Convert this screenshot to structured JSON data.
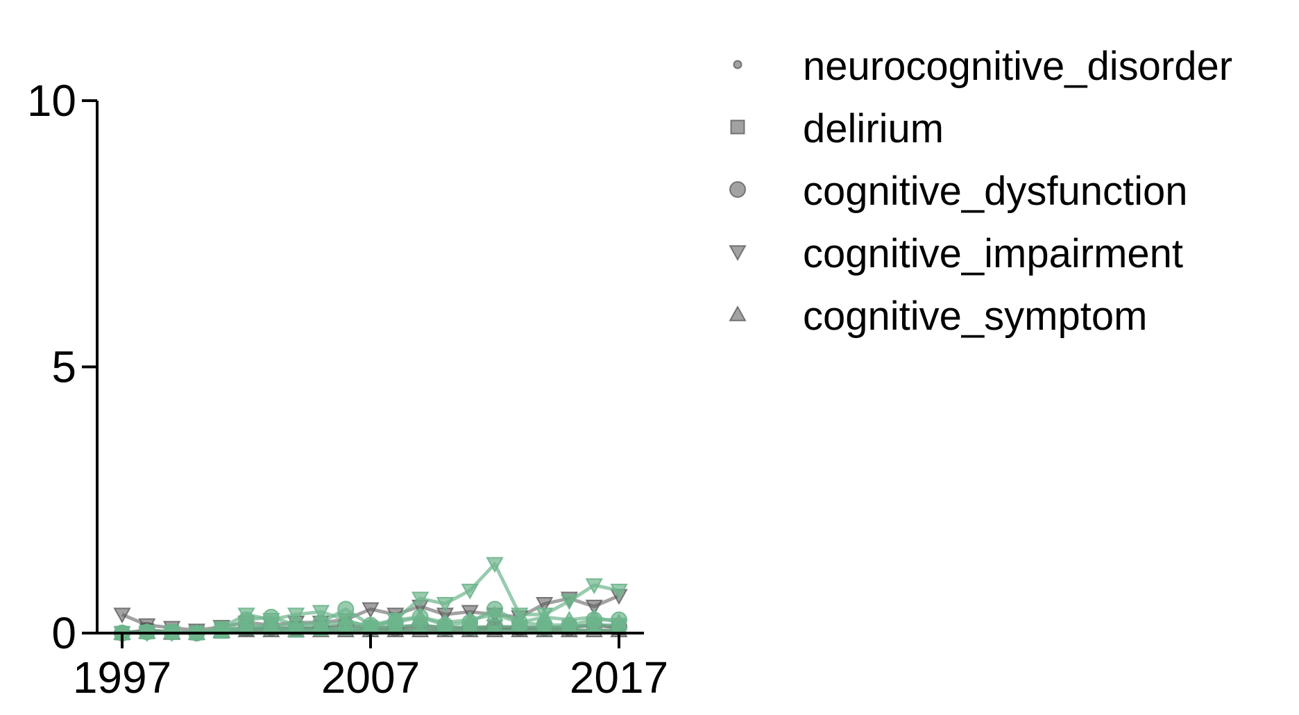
{
  "chart_data": {
    "type": "line",
    "title": "",
    "xlabel": "",
    "ylabel": "",
    "xlim": [
      1996,
      2018
    ],
    "ylim": [
      0,
      10
    ],
    "xticks": [
      1997,
      2007,
      2017
    ],
    "xtick_labels": [
      "1997",
      "2007",
      "2017"
    ],
    "yticks": [
      0,
      5,
      10
    ],
    "ytick_labels": [
      "0",
      "5",
      "10"
    ],
    "grid": false,
    "legend_position": "outside-right-top",
    "colors": {
      "gray": "#555555",
      "green": "#6db58c",
      "axis": "#000000"
    },
    "legend": [
      {
        "label": "neurocognitive_disorder",
        "marker": "point"
      },
      {
        "label": "delirium",
        "marker": "square"
      },
      {
        "label": "cognitive_dysfunction",
        "marker": "circle"
      },
      {
        "label": "cognitive_impairment",
        "marker": "triangle-down"
      },
      {
        "label": "cognitive_symptom",
        "marker": "triangle-up"
      }
    ],
    "x": [
      1997,
      1998,
      1999,
      2000,
      2001,
      2002,
      2003,
      2004,
      2005,
      2006,
      2007,
      2008,
      2009,
      2010,
      2011,
      2012,
      2013,
      2014,
      2015,
      2016,
      2017
    ],
    "series": [
      {
        "group": "gray",
        "legend_index": 0,
        "marker": "point",
        "values": [
          0,
          0.03,
          0.02,
          0,
          0.02,
          0.05,
          0.05,
          0.05,
          0.05,
          0.05,
          0.05,
          0.05,
          0.05,
          0.05,
          0.05,
          0.08,
          0.08,
          0.05,
          0.05,
          0.05,
          0.05
        ]
      },
      {
        "group": "gray",
        "legend_index": 1,
        "marker": "square",
        "values": [
          0,
          0.05,
          0.02,
          0,
          0.05,
          0.08,
          0.1,
          0.08,
          0.1,
          0.1,
          0.1,
          0.1,
          0.12,
          0.1,
          0.1,
          0.1,
          0.1,
          0.1,
          0.12,
          0.15,
          0.1
        ]
      },
      {
        "group": "gray",
        "legend_index": 2,
        "marker": "circle",
        "values": [
          0,
          0.05,
          0.02,
          0,
          0.05,
          0.1,
          0.1,
          0.08,
          0.1,
          0.15,
          0.1,
          0.1,
          0.15,
          0.1,
          0.1,
          0.12,
          0.1,
          0.1,
          0.1,
          0.15,
          0.12
        ]
      },
      {
        "group": "gray",
        "legend_index": 3,
        "marker": "triangle-down",
        "values": [
          0.35,
          0.15,
          0.1,
          0.05,
          0.12,
          0.2,
          0.15,
          0.2,
          0.2,
          0.25,
          0.45,
          0.35,
          0.5,
          0.35,
          0.4,
          0.35,
          0.3,
          0.55,
          0.65,
          0.5,
          0.7
        ]
      },
      {
        "group": "gray",
        "legend_index": 4,
        "marker": "triangle-up",
        "values": [
          0,
          0.02,
          0,
          0,
          0.03,
          0.05,
          0.05,
          0.05,
          0.05,
          0.05,
          0.05,
          0.05,
          0.05,
          0.05,
          0.05,
          0.05,
          0.05,
          0.05,
          0.05,
          0.05,
          0.05
        ]
      },
      {
        "group": "green",
        "marker": "point",
        "values": [
          0,
          0.02,
          0.01,
          0,
          0.02,
          0.05,
          0.05,
          0.05,
          0.05,
          0.05,
          0.05,
          0.05,
          0.05,
          0.05,
          0.05,
          0.05,
          0.05,
          0.05,
          0.05,
          0.05,
          0.05
        ]
      },
      {
        "group": "green",
        "marker": "square",
        "values": [
          0,
          0.02,
          0.02,
          0,
          0.03,
          0.1,
          0.1,
          0.05,
          0.08,
          0.1,
          0.1,
          0.12,
          0.15,
          0.1,
          0.1,
          0.12,
          0.12,
          0.1,
          0.12,
          0.15,
          0.15
        ]
      },
      {
        "group": "green",
        "marker": "circle",
        "values": [
          0,
          0.02,
          0.02,
          0,
          0.05,
          0.25,
          0.3,
          0.15,
          0.2,
          0.45,
          0.15,
          0.2,
          0.3,
          0.15,
          0.2,
          0.45,
          0.2,
          0.15,
          0.15,
          0.25,
          0.25
        ]
      },
      {
        "group": "green",
        "marker": "triangle-down",
        "values": [
          0,
          0,
          0,
          0,
          0.1,
          0.35,
          0.25,
          0.35,
          0.4,
          0.25,
          0.1,
          0.25,
          0.65,
          0.55,
          0.8,
          1.3,
          0.35,
          0.35,
          0.6,
          0.9,
          0.8
        ]
      },
      {
        "group": "green",
        "marker": "triangle-up",
        "values": [
          0,
          0.02,
          0.02,
          0,
          0.05,
          0.12,
          0.15,
          0.12,
          0.15,
          0.2,
          0.15,
          0.25,
          0.3,
          0.2,
          0.25,
          0.35,
          0.2,
          0.3,
          0.25,
          0.3,
          0.2
        ]
      }
    ]
  }
}
